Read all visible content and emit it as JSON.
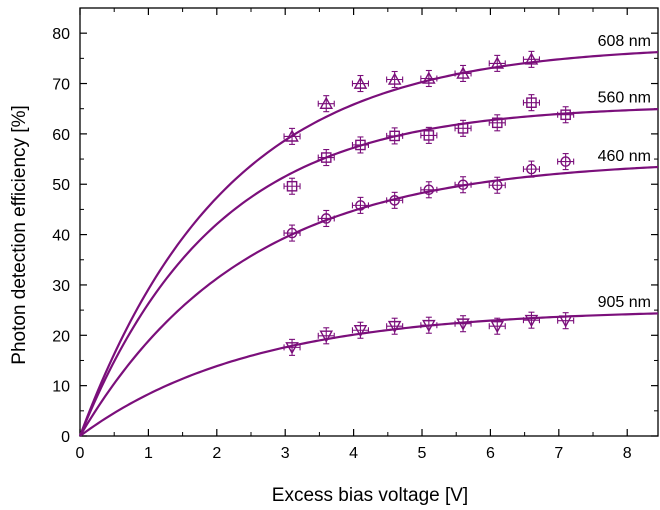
{
  "chart_data": {
    "type": "scatter",
    "title": "",
    "xlabel": "Excess bias voltage [V]",
    "ylabel": "Photon detection efficiency [%]",
    "xlim": [
      0,
      8.45
    ],
    "ylim": [
      0,
      85
    ],
    "xticks": [
      0,
      1,
      2,
      3,
      4,
      5,
      6,
      7,
      8
    ],
    "yticks": [
      0,
      10,
      20,
      30,
      40,
      50,
      60,
      70,
      80
    ],
    "grid": false,
    "legend": "none",
    "color": "#7b0f7b",
    "series": [
      {
        "name": "608 nm",
        "marker": "triangle-up",
        "fit": {
          "pmax": 77.7,
          "k": 0.47
        },
        "x": [
          3.1,
          3.6,
          4.1,
          4.6,
          5.1,
          5.6,
          6.1,
          6.6
        ],
        "y": [
          59.5,
          66.0,
          70.0,
          70.8,
          71.0,
          72.0,
          74.0,
          74.8
        ]
      },
      {
        "name": "560 nm",
        "marker": "square",
        "fit": {
          "pmax": 65.8,
          "k": 0.51
        },
        "x": [
          3.1,
          3.6,
          4.1,
          4.6,
          5.1,
          5.6,
          6.1,
          6.6,
          7.1
        ],
        "y": [
          49.6,
          55.3,
          57.8,
          59.6,
          59.7,
          61.1,
          62.2,
          66.2,
          63.8
        ]
      },
      {
        "name": "460 nm",
        "marker": "circle",
        "fit": {
          "pmax": 55.0,
          "k": 0.42
        },
        "x": [
          3.1,
          3.6,
          4.1,
          4.6,
          5.1,
          5.6,
          6.1,
          6.6,
          7.1
        ],
        "y": [
          40.3,
          43.2,
          45.8,
          46.8,
          48.9,
          49.9,
          49.8,
          53.0,
          54.5
        ]
      },
      {
        "name": "905 nm",
        "marker": "triangle-down",
        "fit": {
          "pmax": 25.2,
          "k": 0.4
        },
        "x": [
          3.1,
          3.6,
          4.1,
          4.6,
          5.1,
          5.6,
          6.1,
          6.6,
          7.1
        ],
        "y": [
          17.6,
          19.9,
          21.0,
          21.8,
          22.0,
          22.3,
          21.8,
          23.0,
          22.9
        ]
      }
    ]
  }
}
